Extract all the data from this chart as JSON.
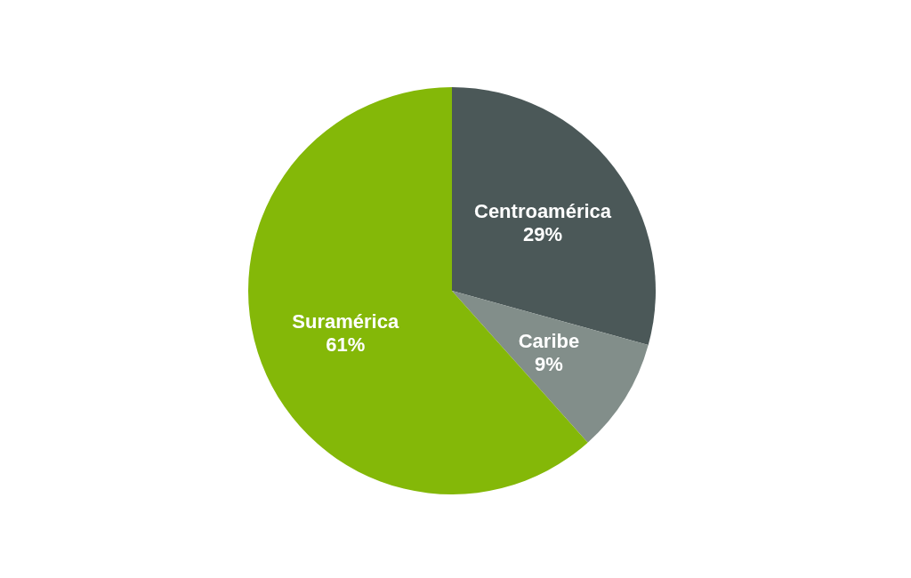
{
  "chart_data": {
    "type": "pie",
    "categories": [
      "Centroamérica",
      "Caribe",
      "Suramérica"
    ],
    "values": [
      29,
      9,
      61
    ],
    "value_labels": [
      "29%",
      "9%",
      "61%"
    ],
    "colors": [
      "#4b5858",
      "#828e8a",
      "#84b808"
    ]
  }
}
